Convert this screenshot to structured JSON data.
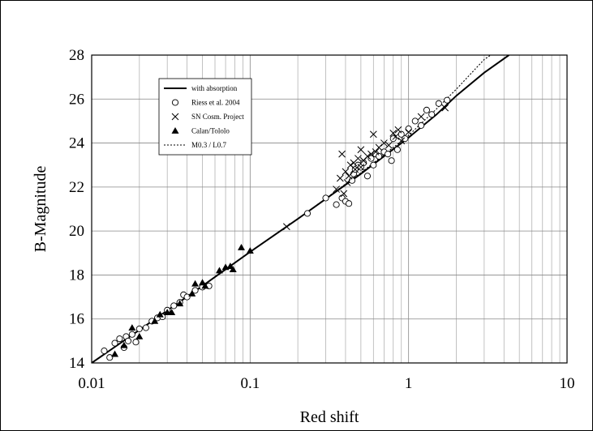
{
  "chart_data": {
    "type": "scatter",
    "title": "",
    "xlabel": "Red shift",
    "ylabel": "B-Magnitude",
    "xscale": "log",
    "xlim": [
      0.01,
      10
    ],
    "ylim": [
      14,
      28
    ],
    "x_ticks": [
      0.01,
      0.1,
      1,
      10
    ],
    "x_tick_labels": [
      "0.01",
      "0.1",
      "1",
      "10"
    ],
    "y_ticks": [
      14,
      16,
      18,
      20,
      22,
      24,
      26,
      28
    ],
    "y_tick_labels": [
      "14",
      "16",
      "18",
      "20",
      "22",
      "24",
      "26",
      "28"
    ],
    "grid": true,
    "legend_position": "top-left",
    "series": [
      {
        "name": "with absorption",
        "kind": "line",
        "style": "solid",
        "x": [
          0.01,
          0.02,
          0.05,
          0.1,
          0.2,
          0.5,
          1.0,
          1.5,
          2.0,
          3.0,
          4.3
        ],
        "y": [
          14.0,
          15.5,
          17.5,
          19.05,
          20.55,
          22.6,
          24.25,
          25.3,
          26.15,
          27.2,
          28.0
        ]
      },
      {
        "name": "Riess et al. 2004",
        "kind": "scatter",
        "marker": "circle",
        "x": [
          0.012,
          0.013,
          0.014,
          0.015,
          0.016,
          0.0165,
          0.017,
          0.018,
          0.019,
          0.02,
          0.022,
          0.024,
          0.026,
          0.028,
          0.03,
          0.033,
          0.036,
          0.038,
          0.04,
          0.045,
          0.05,
          0.055,
          0.23,
          0.3,
          0.35,
          0.38,
          0.4,
          0.42,
          0.44,
          0.45,
          0.46,
          0.48,
          0.5,
          0.52,
          0.55,
          0.58,
          0.6,
          0.62,
          0.65,
          0.7,
          0.74,
          0.78,
          0.8,
          0.85,
          0.9,
          0.95,
          1.0,
          1.1,
          1.2,
          1.3,
          1.4,
          1.55,
          1.75
        ],
        "y": [
          14.55,
          14.25,
          14.9,
          15.1,
          14.7,
          15.2,
          15.0,
          15.3,
          14.95,
          15.55,
          15.6,
          15.9,
          16.05,
          16.1,
          16.4,
          16.6,
          16.75,
          17.1,
          17.0,
          17.3,
          17.45,
          17.5,
          20.8,
          21.5,
          21.2,
          21.5,
          21.35,
          21.25,
          22.3,
          22.6,
          22.8,
          23.0,
          22.9,
          23.1,
          22.5,
          23.3,
          23.0,
          23.5,
          23.4,
          23.6,
          23.5,
          23.2,
          24.2,
          23.7,
          24.4,
          24.2,
          24.65,
          25.0,
          24.8,
          25.5,
          25.3,
          25.8,
          25.95
        ]
      },
      {
        "name": "SN Cosm. Project",
        "kind": "scatter",
        "marker": "cross",
        "x": [
          0.17,
          0.35,
          0.37,
          0.38,
          0.39,
          0.4,
          0.41,
          0.42,
          0.43,
          0.45,
          0.46,
          0.48,
          0.5,
          0.5,
          0.52,
          0.55,
          0.58,
          0.6,
          0.62,
          0.65,
          0.7,
          0.75,
          0.8,
          0.83,
          0.86,
          0.9,
          1.0,
          1.2,
          1.7
        ],
        "y": [
          20.2,
          21.9,
          22.4,
          23.5,
          21.7,
          22.7,
          22.2,
          22.5,
          23.0,
          23.1,
          22.8,
          23.3,
          23.7,
          22.9,
          23.2,
          23.4,
          23.5,
          24.4,
          23.6,
          23.8,
          24.0,
          23.9,
          24.45,
          24.3,
          24.6,
          24.1,
          24.5,
          25.2,
          25.6
        ]
      },
      {
        "name": "Calan/Tololo",
        "kind": "scatter",
        "marker": "triangle",
        "x": [
          0.014,
          0.016,
          0.018,
          0.02,
          0.025,
          0.027,
          0.03,
          0.032,
          0.036,
          0.043,
          0.045,
          0.05,
          0.052,
          0.064,
          0.07,
          0.075,
          0.078,
          0.088,
          0.1
        ],
        "y": [
          14.4,
          14.8,
          15.6,
          15.2,
          15.9,
          16.2,
          16.3,
          16.3,
          16.7,
          17.15,
          17.6,
          17.65,
          17.5,
          18.2,
          18.35,
          18.4,
          18.25,
          19.25,
          19.1
        ]
      },
      {
        "name": "M0.3  / L0.7",
        "kind": "line",
        "style": "dotted",
        "x": [
          0.01,
          0.02,
          0.05,
          0.1,
          0.2,
          0.5,
          1.0,
          1.5,
          2.0,
          3.0,
          3.3
        ],
        "y": [
          14.0,
          15.5,
          17.5,
          19.05,
          20.55,
          22.65,
          24.35,
          25.55,
          26.45,
          27.8,
          28.0
        ]
      }
    ]
  }
}
